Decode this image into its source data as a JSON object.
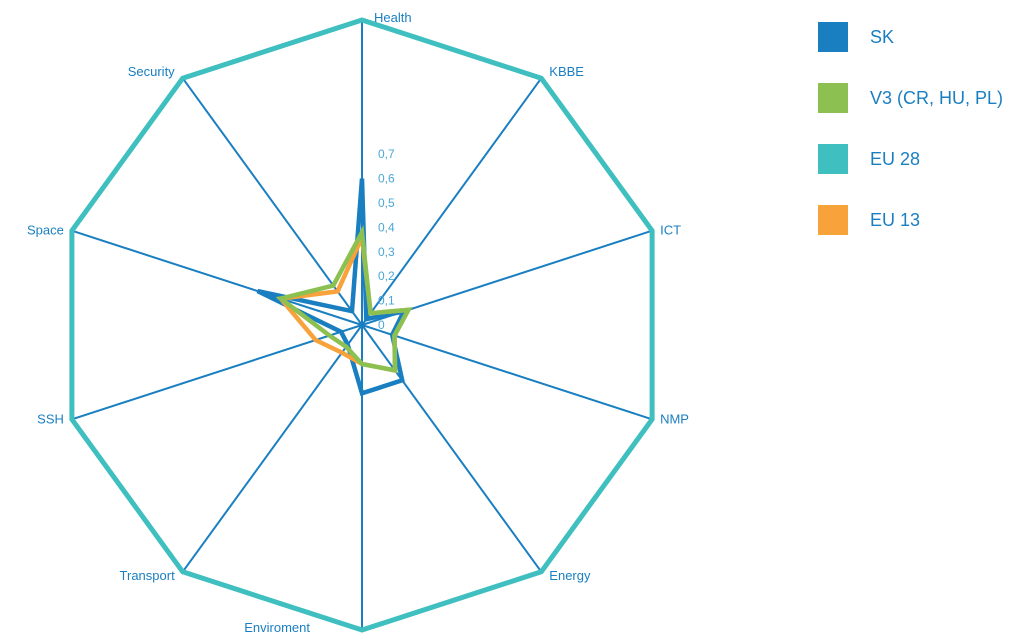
{
  "chart_data": {
    "type": "radar",
    "title": "",
    "axes": [
      "Health",
      "KBBE",
      "ICT",
      "NMP",
      "Energy",
      "Enviroment",
      "Transport",
      "SSH",
      "Space",
      "Security"
    ],
    "ticks": [
      "0",
      "0,1",
      "0,2",
      "0,3",
      "0,4",
      "0,5",
      "0,6",
      "0,7"
    ],
    "range": [
      0,
      1.25
    ],
    "series": [
      {
        "name": "SK",
        "color": "#1a7fc1",
        "values": [
          0.6,
          0.03,
          0.18,
          0.13,
          0.28,
          0.28,
          0.1,
          0.09,
          0.45,
          0.07
        ]
      },
      {
        "name": "EU 28",
        "color": "#3fbfbf",
        "values": [
          1.25,
          1.25,
          1.25,
          1.25,
          1.25,
          1.25,
          1.25,
          1.25,
          1.25,
          1.25
        ]
      },
      {
        "name": "EU 13",
        "color": "#f7a23a",
        "values": [
          0.36,
          0.06,
          0.2,
          0.14,
          0.23,
          0.16,
          0.14,
          0.2,
          0.35,
          0.17
        ]
      },
      {
        "name": "V3 (CR, HU, PL)",
        "color": "#8cc152",
        "values": [
          0.38,
          0.06,
          0.2,
          0.14,
          0.23,
          0.16,
          0.11,
          0.14,
          0.35,
          0.2
        ]
      }
    ],
    "legend": {
      "position": "right",
      "entries": [
        {
          "name": "SK",
          "color": "#1a7fc1"
        },
        {
          "name": "V3 (CR, HU, PL)",
          "color": "#8cc152"
        },
        {
          "name": "EU 28",
          "color": "#3fbfbf"
        },
        {
          "name": "EU 13",
          "color": "#f7a23a"
        }
      ]
    },
    "gridline_color": "#1a7fc1"
  }
}
